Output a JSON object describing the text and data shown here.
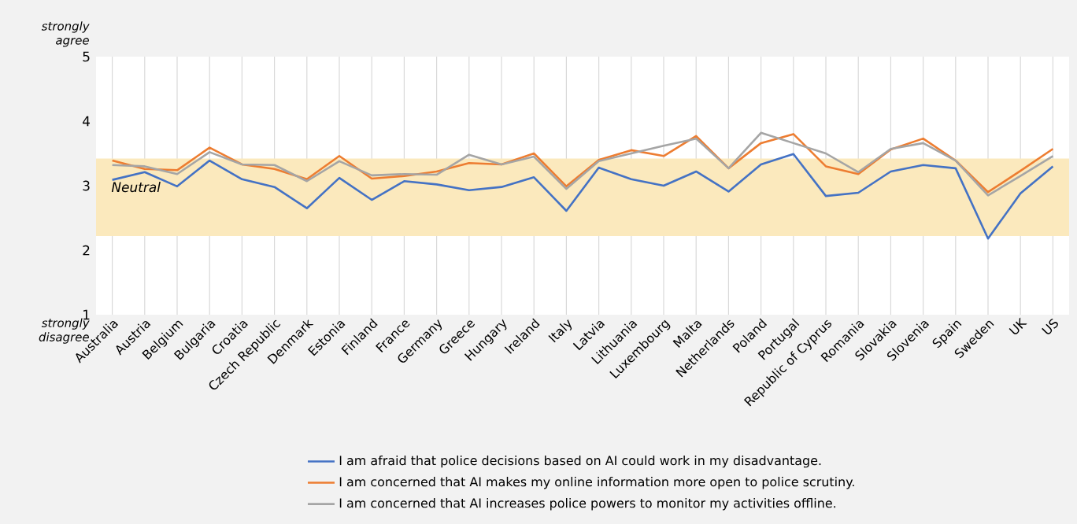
{
  "chart_data": {
    "type": "line",
    "categories": [
      "Australia",
      "Austria",
      "Belgium",
      "Bulgaria",
      "Croatia",
      "Czech Republic",
      "Denmark",
      "Estonia",
      "Finland",
      "France",
      "Germany",
      "Greece",
      "Hungary",
      "Ireland",
      "Italy",
      "Latvia",
      "Lithuania",
      "Luxembourg",
      "Malta",
      "Netherlands",
      "Poland",
      "Portugal",
      "Republic of Cyprus",
      "Romania",
      "Slovakia",
      "Slovenia",
      "Spain",
      "Sweden",
      "UK",
      "US"
    ],
    "series": [
      {
        "name": "I am afraid that police decisions based on AI could work in my disadvantage.",
        "color": "#4472c4",
        "values": [
          3.09,
          3.21,
          2.99,
          3.39,
          3.1,
          2.98,
          2.65,
          3.12,
          2.78,
          3.07,
          3.02,
          2.93,
          2.98,
          3.13,
          2.61,
          3.28,
          3.1,
          3.0,
          3.22,
          2.91,
          3.33,
          3.49,
          2.84,
          2.89,
          3.22,
          3.32,
          3.27,
          2.18,
          2.88,
          3.3
        ]
      },
      {
        "name": "I am concerned that AI makes my online information more open to police scrutiny.",
        "color": "#ed7d31",
        "values": [
          3.39,
          3.26,
          3.24,
          3.59,
          3.33,
          3.26,
          3.1,
          3.46,
          3.11,
          3.15,
          3.22,
          3.35,
          3.33,
          3.5,
          2.99,
          3.4,
          3.55,
          3.46,
          3.77,
          3.27,
          3.66,
          3.8,
          3.3,
          3.18,
          3.56,
          3.73,
          3.39,
          2.9,
          3.23,
          3.57
        ]
      },
      {
        "name": "I am concerned that AI increases police powers to monitor my activities offline.",
        "color": "#a5a5a5",
        "values": [
          3.32,
          3.3,
          3.18,
          3.52,
          3.33,
          3.32,
          3.07,
          3.38,
          3.16,
          3.18,
          3.17,
          3.48,
          3.33,
          3.45,
          2.95,
          3.38,
          3.5,
          3.62,
          3.73,
          3.27,
          3.82,
          3.66,
          3.5,
          3.21,
          3.57,
          3.66,
          3.39,
          2.85,
          3.15,
          3.46
        ]
      }
    ],
    "ylim": [
      1,
      5
    ],
    "yticks": [
      1,
      2,
      3,
      4,
      5
    ],
    "bands": [
      {
        "axis": "y",
        "from": 2.22,
        "to": 3.42,
        "label": "Neutral",
        "color": "#fbe9bd"
      }
    ],
    "annotations": [
      "strongly agree",
      "strongly disagree"
    ],
    "grid": "x",
    "legend": "bottom",
    "marker": "none",
    "line_style": "solid"
  }
}
